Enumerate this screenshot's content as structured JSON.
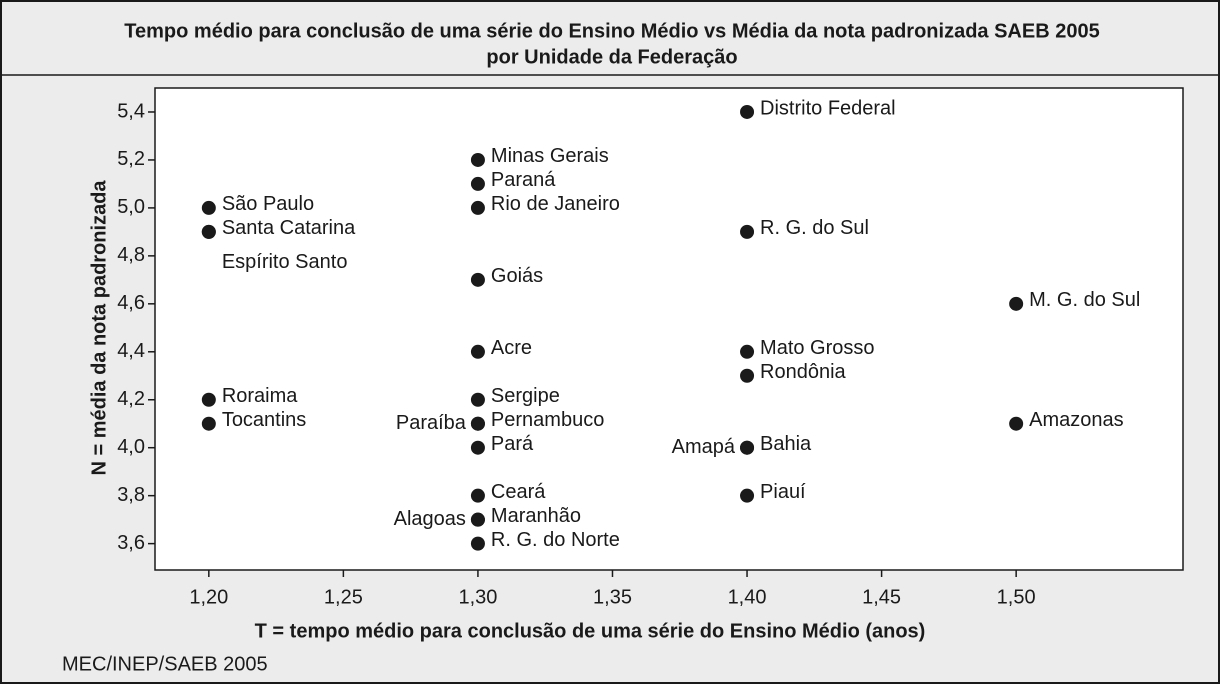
{
  "chart_data": {
    "type": "scatter",
    "title": "Tempo médio para conclusão de uma série do Ensino Médio vs Média da nota padronizada SAEB 2005",
    "subtitle": "por Unidade da Federação",
    "x_label": "T = tempo médio para conclusão de uma série do Ensino Médio (anos)",
    "y_label": "N = média da nota padronizada",
    "source": "MEC/INEP/SAEB 2005",
    "color": "#1a1a1a",
    "point_labels": [
      "São Paulo",
      "Santa Catarina",
      "Espírito Santo",
      "Roraima",
      "Tocantins",
      "Minas Gerais",
      "Paraná",
      "Rio de Janeiro",
      "Goiás",
      "Acre",
      "Sergipe",
      "Pernambuco",
      "Paraíba",
      "Pará",
      "Ceará",
      "Maranhão",
      "Alagoas",
      "R. G. do Norte",
      "Distrito Federal",
      "R. G. do Sul",
      "Mato Grosso",
      "Rondônia",
      "Bahia",
      "Amapá",
      "Piauí",
      "M. G. do Sul",
      "Amazonas"
    ],
    "x": [
      1.2,
      1.2,
      1.2,
      1.2,
      1.2,
      1.3,
      1.3,
      1.3,
      1.3,
      1.3,
      1.3,
      1.3,
      1.3,
      1.3,
      1.3,
      1.3,
      1.3,
      1.3,
      1.4,
      1.4,
      1.4,
      1.4,
      1.4,
      1.4,
      1.4,
      1.5,
      1.5
    ],
    "values": [
      5.0,
      4.9,
      4.9,
      4.2,
      4.1,
      5.2,
      5.1,
      5.0,
      4.7,
      4.4,
      4.2,
      4.1,
      4.1,
      4.0,
      3.8,
      3.7,
      3.7,
      3.6,
      5.4,
      4.9,
      4.4,
      4.3,
      4.0,
      4.0,
      3.8,
      4.6,
      4.1
    ],
    "xlim": [
      1.18,
      1.562
    ],
    "ylim": [
      3.49,
      5.5
    ],
    "xticks": [
      {
        "value": 1.2,
        "label": "1,20"
      },
      {
        "value": 1.25,
        "label": "1,25"
      },
      {
        "value": 1.3,
        "label": "1,30"
      },
      {
        "value": 1.35,
        "label": "1,35"
      },
      {
        "value": 1.4,
        "label": "1,40"
      },
      {
        "value": 1.45,
        "label": "1,45"
      },
      {
        "value": 1.5,
        "label": "1,50"
      }
    ],
    "yticks": [
      {
        "value": 3.6,
        "label": "3,6"
      },
      {
        "value": 3.8,
        "label": "3,8"
      },
      {
        "value": 4.0,
        "label": "4,0"
      },
      {
        "value": 4.2,
        "label": "4,2"
      },
      {
        "value": 4.4,
        "label": "4,4"
      },
      {
        "value": 4.6,
        "label": "4,6"
      },
      {
        "value": 4.8,
        "label": "4,8"
      },
      {
        "value": 5.0,
        "label": "5,0"
      },
      {
        "value": 5.2,
        "label": "5,2"
      },
      {
        "value": 5.4,
        "label": "5,4"
      }
    ]
  }
}
